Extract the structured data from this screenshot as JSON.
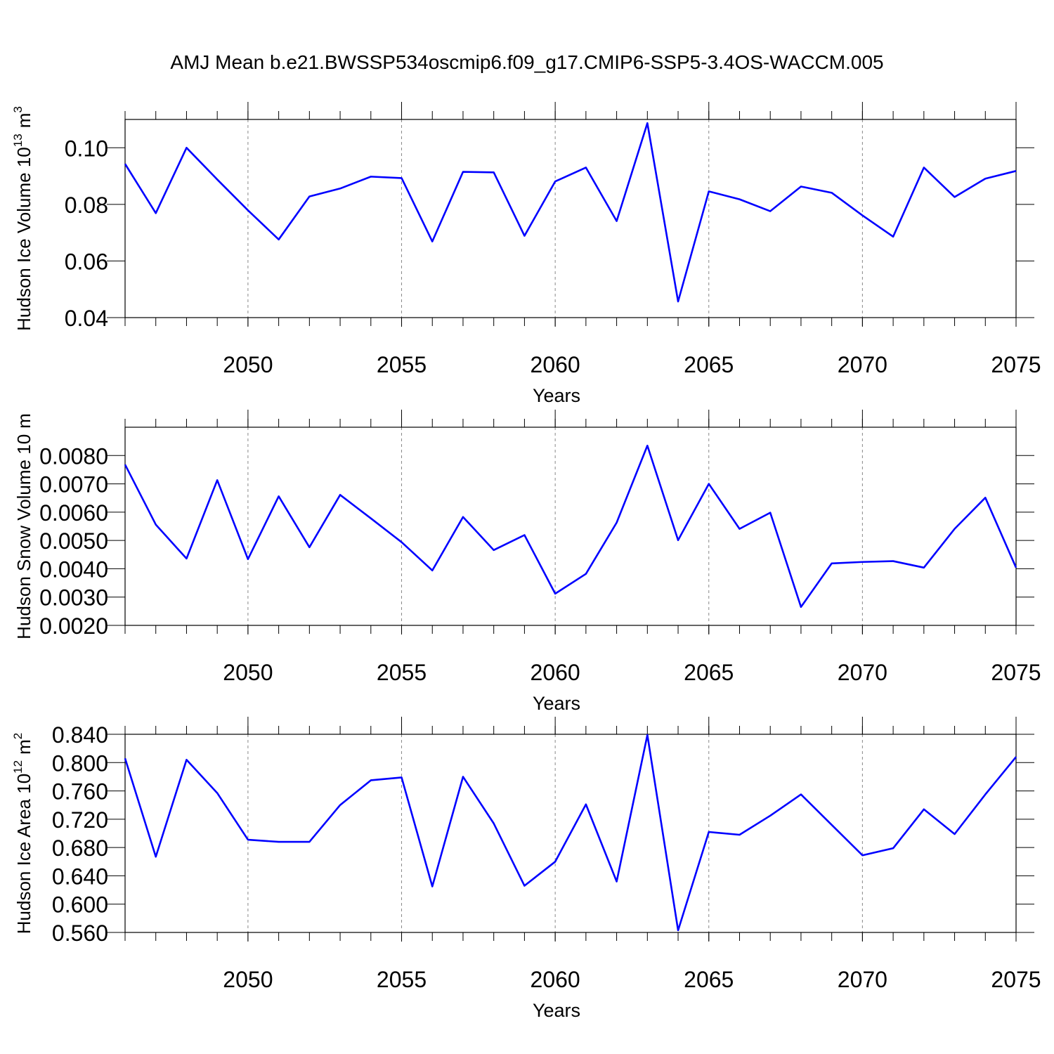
{
  "title": "AMJ Mean b.e21.BWSSP534oscmip6.f09_g17.CMIP6-SSP5-3.4OS-WACCM.005",
  "chart_data": [
    {
      "type": "line",
      "xlabel": "Years",
      "ylabel": {
        "text": "Hudson Ice Volume 10",
        "exponent": "13",
        "unit": "m",
        "unit_exponent": "3"
      },
      "x": [
        2046,
        2047,
        2048,
        2049,
        2050,
        2051,
        2052,
        2053,
        2054,
        2055,
        2056,
        2057,
        2058,
        2059,
        2060,
        2061,
        2062,
        2063,
        2064,
        2065,
        2066,
        2067,
        2068,
        2069,
        2070,
        2071,
        2072,
        2073,
        2074,
        2075
      ],
      "series": [
        {
          "color": "#0000ff",
          "values": [
            0.0943,
            0.0769,
            0.1,
            0.0888,
            0.0779,
            0.0676,
            0.0828,
            0.0856,
            0.0898,
            0.0893,
            0.0669,
            0.0915,
            0.0913,
            0.0689,
            0.0881,
            0.093,
            0.0741,
            0.1087,
            0.0457,
            0.0846,
            0.0818,
            0.0776,
            0.0863,
            0.0841,
            0.0761,
            0.0686,
            0.093,
            0.0826,
            0.0891,
            0.0918
          ]
        }
      ],
      "xlim": [
        2046,
        2075
      ],
      "xticks": [
        2050,
        2055,
        2060,
        2065,
        2070,
        2075
      ],
      "ylim": [
        0.04,
        0.11
      ],
      "yticks": [
        0.04,
        0.06,
        0.08,
        {
          "value": 0.1,
          "label": "0.10"
        }
      ],
      "grid": "x"
    },
    {
      "type": "line",
      "xlabel": "Years",
      "ylabel": {
        "text": "Hudson Snow Volume 10",
        "unit": "m"
      },
      "x": [
        2046,
        2047,
        2048,
        2049,
        2050,
        2051,
        2052,
        2053,
        2054,
        2055,
        2056,
        2057,
        2058,
        2059,
        2060,
        2061,
        2062,
        2063,
        2064,
        2065,
        2066,
        2067,
        2068,
        2069,
        2070,
        2071,
        2072,
        2073,
        2074,
        2075
      ],
      "series": [
        {
          "color": "#0000ff",
          "values": [
            0.00768,
            0.00556,
            0.00436,
            0.00713,
            0.00434,
            0.00656,
            0.00476,
            0.00661,
            0.00578,
            0.00494,
            0.00394,
            0.00583,
            0.00466,
            0.00519,
            0.00312,
            0.00382,
            0.00563,
            0.00835,
            0.00501,
            0.007,
            0.00541,
            0.00598,
            0.00265,
            0.00419,
            0.00424,
            0.00427,
            0.00404,
            0.00541,
            0.00651,
            0.00404
          ]
        }
      ],
      "xlim": [
        2046,
        2075
      ],
      "xticks": [
        2050,
        2055,
        2060,
        2065,
        2070,
        2075
      ],
      "ylim": [
        0.002,
        0.009
      ],
      "yticks": [
        {
          "value": 0.002,
          "label": "0.0020"
        },
        {
          "value": 0.003,
          "label": "0.0030"
        },
        {
          "value": 0.004,
          "label": "0.0040"
        },
        {
          "value": 0.005,
          "label": "0.0050"
        },
        {
          "value": 0.006,
          "label": "0.0060"
        },
        {
          "value": 0.007,
          "label": "0.0070"
        },
        {
          "value": 0.008,
          "label": "0.0080"
        }
      ],
      "grid": "x"
    },
    {
      "type": "line",
      "xlabel": "Years",
      "ylabel": {
        "text": "Hudson Ice Area 10",
        "exponent": "12",
        "unit": "m",
        "unit_exponent": "2"
      },
      "x": [
        2046,
        2047,
        2048,
        2049,
        2050,
        2051,
        2052,
        2053,
        2054,
        2055,
        2056,
        2057,
        2058,
        2059,
        2060,
        2061,
        2062,
        2063,
        2064,
        2065,
        2066,
        2067,
        2068,
        2069,
        2070,
        2071,
        2072,
        2073,
        2074,
        2075
      ],
      "series": [
        {
          "color": "#0000ff",
          "values": [
            0.806,
            0.667,
            0.804,
            0.757,
            0.691,
            0.688,
            0.688,
            0.74,
            0.775,
            0.779,
            0.625,
            0.78,
            0.714,
            0.626,
            0.66,
            0.741,
            0.632,
            0.839,
            0.563,
            0.702,
            0.698,
            0.725,
            0.755,
            0.712,
            0.669,
            0.679,
            0.734,
            0.699,
            0.755,
            0.808
          ]
        }
      ],
      "xlim": [
        2046,
        2075
      ],
      "xticks": [
        2050,
        2055,
        2060,
        2065,
        2070,
        2075
      ],
      "ylim": [
        0.56,
        0.84
      ],
      "yticks": [
        {
          "value": 0.56,
          "label": "0.560"
        },
        {
          "value": 0.6,
          "label": "0.600"
        },
        {
          "value": 0.64,
          "label": "0.640"
        },
        {
          "value": 0.68,
          "label": "0.680"
        },
        {
          "value": 0.72,
          "label": "0.720"
        },
        {
          "value": 0.76,
          "label": "0.760"
        },
        {
          "value": 0.8,
          "label": "0.800"
        },
        {
          "value": 0.84,
          "label": "0.840"
        }
      ],
      "grid": "x"
    }
  ]
}
